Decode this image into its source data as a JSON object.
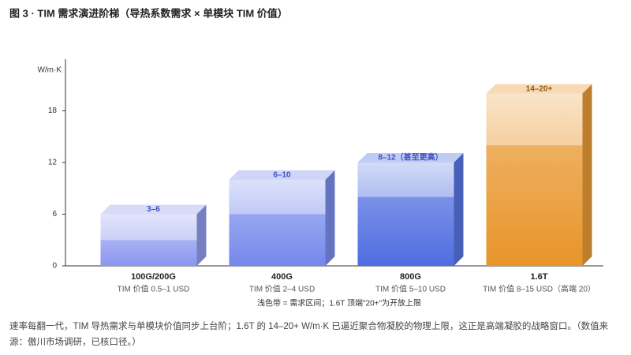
{
  "chart_data": {
    "type": "range-bar",
    "title": "图 3 · TIM 需求演进阶梯（导热系数需求 × 单模块 TIM 价值）",
    "y_label": "W/m·K",
    "categories": [
      "100G/200G",
      "400G",
      "800G",
      "1.6T"
    ],
    "category_notes": [
      "TIM 价值 0.5–1 USD",
      "TIM 价值 2–4 USD",
      "TIM 价值 5–10 USD",
      "TIM 价值 8–15 USD（高端 20）"
    ],
    "low": [
      3,
      6,
      8,
      14
    ],
    "high": [
      6,
      10,
      12,
      20
    ],
    "value_labels": [
      "3–6",
      "6–10",
      "8–12（甚至更高）",
      "14–20+"
    ],
    "colors": [
      "#8b97ef",
      "#7488ec",
      "#4e6de0",
      "#e8952a"
    ],
    "label_colors": [
      "#3d4fc4",
      "#3d4fc4",
      "#3d4fc4",
      "#8a5a10"
    ],
    "ylim": [
      0,
      24
    ],
    "yticks": [
      0,
      6,
      12,
      18
    ],
    "note": "浅色带 = 需求区间；1.6T 顶端\"20+\"为开放上限"
  },
  "caption": "速率每翻一代，TIM 导热需求与单模块价值同步上台阶；1.6T 的 14–20+ W/m·K 已逼近聚合物凝胶的物理上限，这正是高端凝胶的战略窗口。（数值来源：傲川市场调研，已核口径。）"
}
